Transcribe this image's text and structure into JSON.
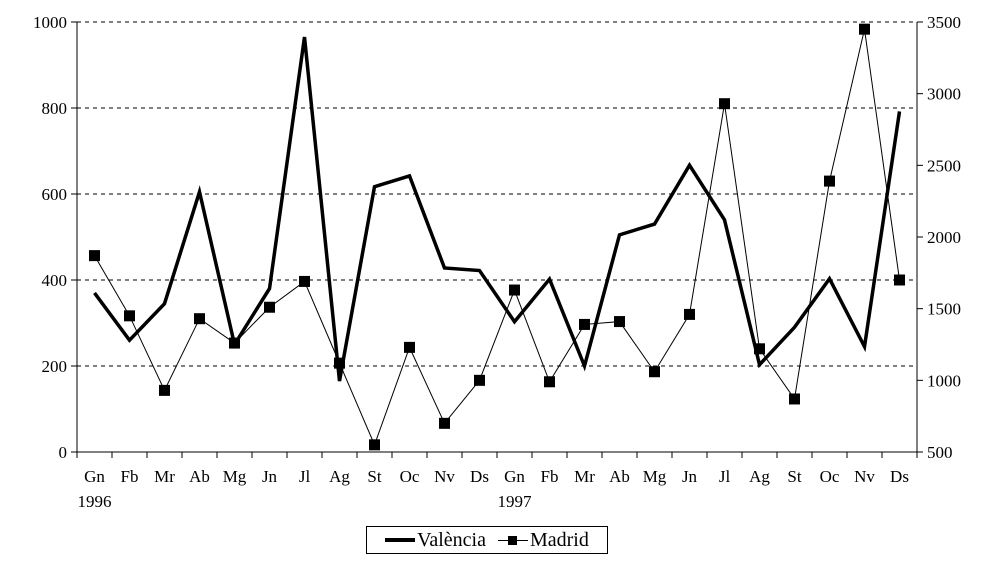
{
  "chart_data": {
    "type": "line",
    "categories": [
      "Gn",
      "Fb",
      "Mr",
      "Ab",
      "Mg",
      "Jn",
      "Jl",
      "Ag",
      "St",
      "Oc",
      "Nv",
      "Ds",
      "Gn",
      "Fb",
      "Mr",
      "Ab",
      "Mg",
      "Jn",
      "Jl",
      "Ag",
      "St",
      "Oc",
      "Nv",
      "Ds"
    ],
    "year_labels": [
      {
        "index": 0,
        "label": "1996"
      },
      {
        "index": 12,
        "label": "1997"
      }
    ],
    "y_left": {
      "min": 0,
      "max": 1000,
      "ticks": [
        0,
        200,
        400,
        600,
        800,
        1000
      ]
    },
    "y_right": {
      "min": 500,
      "max": 3500,
      "ticks": [
        500,
        1000,
        1500,
        2000,
        2500,
        3000,
        3500
      ]
    },
    "grid": "horizontal dashed",
    "legend_position": "bottom-center",
    "series": [
      {
        "name": "València",
        "axis": "left",
        "style": "thick line",
        "values": [
          370,
          260,
          345,
          605,
          250,
          380,
          965,
          165,
          617,
          642,
          428,
          422,
          303,
          402,
          200,
          505,
          530,
          667,
          540,
          203,
          290,
          403,
          245,
          792
        ]
      },
      {
        "name": "Madrid",
        "axis": "right",
        "style": "thin line with square markers",
        "values": [
          1870,
          1450,
          930,
          1430,
          1260,
          1510,
          1690,
          1120,
          550,
          1230,
          700,
          1000,
          1630,
          990,
          1390,
          1410,
          1060,
          1460,
          2930,
          1220,
          870,
          2390,
          3450,
          1700
        ]
      }
    ]
  },
  "colors": {
    "line": "#000000",
    "grid": "#000000",
    "background": "#ffffff"
  }
}
